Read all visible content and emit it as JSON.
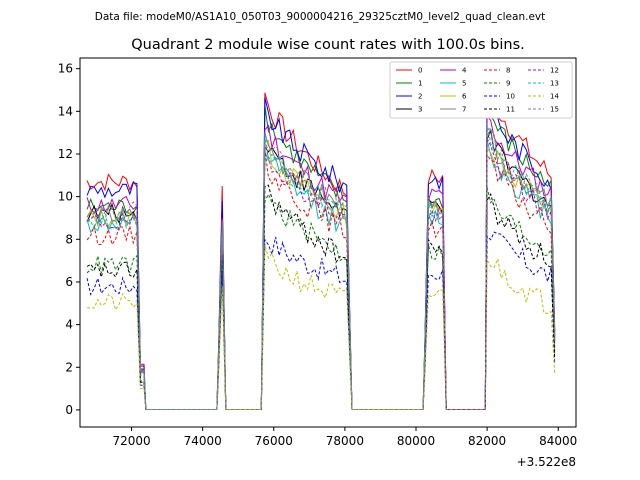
{
  "figure": {
    "suptitle": "Data file: modeM0/AS1A10_050T03_9000004216_29325cztM0_level2_quad_clean.evt",
    "title": "Quadrant 2 module wise count rates with 100.0s bins.",
    "x_offset_label": "+3.522e8"
  },
  "chart_data": {
    "type": "line",
    "title": "Quadrant 2 module wise count rates with 100.0s bins.",
    "xlabel": "",
    "ylabel": "",
    "x_offset": 352200000,
    "xlim": [
      70550,
      84500
    ],
    "ylim": [
      -0.8,
      16.5
    ],
    "xticks": [
      72000,
      74000,
      76000,
      78000,
      80000,
      82000,
      84000
    ],
    "xtick_labels": [
      "72000",
      "74000",
      "76000",
      "78000",
      "80000",
      "82000",
      "84000"
    ],
    "yticks": [
      0,
      2,
      4,
      6,
      8,
      10,
      12,
      14,
      16
    ],
    "ytick_labels": [
      "0",
      "2",
      "4",
      "6",
      "8",
      "10",
      "12",
      "14",
      "16"
    ],
    "grid": false,
    "legend_position": "top-right",
    "segments": [
      {
        "start": 70750,
        "end": 72400,
        "shape": "flat"
      },
      {
        "start": 72400,
        "end": 74450,
        "shape": "zero"
      },
      {
        "start": 74450,
        "end": 74650,
        "shape": "spike"
      },
      {
        "start": 74650,
        "end": 75750,
        "shape": "zero"
      },
      {
        "start": 75750,
        "end": 78200,
        "shape": "decay"
      },
      {
        "start": 78200,
        "end": 80250,
        "shape": "zero"
      },
      {
        "start": 80250,
        "end": 80850,
        "shape": "flat"
      },
      {
        "start": 80850,
        "end": 82000,
        "shape": "zero"
      },
      {
        "start": 82000,
        "end": 83950,
        "shape": "decay"
      }
    ],
    "series": [
      {
        "name": "0",
        "color": "#ff0000",
        "dash": false,
        "level1": 10.7,
        "peak2": 14.8,
        "tail2": 10.0,
        "level3": 10.9,
        "peak4": 15.4,
        "tail4": 10.7,
        "spike": 10.5
      },
      {
        "name": "1",
        "color": "#008000",
        "dash": false,
        "level1": 9.5,
        "peak2": 14.0,
        "tail2": 9.6,
        "level3": 9.8,
        "peak4": 14.3,
        "tail4": 10.2,
        "spike": 9.6
      },
      {
        "name": "2",
        "color": "#0000ff",
        "dash": false,
        "level1": 10.3,
        "peak2": 14.2,
        "tail2": 10.3,
        "level3": 10.8,
        "peak4": 14.6,
        "tail4": 10.5,
        "spike": 9.8
      },
      {
        "name": "3",
        "color": "#000000",
        "dash": false,
        "level1": 9.2,
        "peak2": 12.8,
        "tail2": 9.0,
        "level3": 9.6,
        "peak4": 13.0,
        "tail4": 9.4,
        "spike": 8.7
      },
      {
        "name": "4",
        "color": "#bf00bf",
        "dash": false,
        "level1": 9.6,
        "peak2": 13.4,
        "tail2": 9.5,
        "level3": 10.0,
        "peak4": 13.8,
        "tail4": 9.9,
        "spike": 9.0
      },
      {
        "name": "5",
        "color": "#00bfbf",
        "dash": false,
        "level1": 8.7,
        "peak2": 12.2,
        "tail2": 8.4,
        "level3": 9.0,
        "peak4": 12.4,
        "tail4": 8.9,
        "spike": 8.4
      },
      {
        "name": "6",
        "color": "#bfbf00",
        "dash": false,
        "level1": 9.0,
        "peak2": 12.5,
        "tail2": 8.9,
        "level3": 9.3,
        "peak4": 12.8,
        "tail4": 9.2,
        "spike": 8.6
      },
      {
        "name": "7",
        "color": "#808080",
        "dash": false,
        "level1": 9.1,
        "peak2": 12.7,
        "tail2": 9.2,
        "level3": 9.4,
        "peak4": 13.1,
        "tail4": 9.4,
        "spike": 8.8
      },
      {
        "name": "8",
        "color": "#ff0000",
        "dash": true,
        "level1": 8.2,
        "peak2": 11.7,
        "tail2": 8.2,
        "level3": 8.5,
        "peak4": 11.9,
        "tail4": 8.4,
        "spike": 8.1
      },
      {
        "name": "9",
        "color": "#008000",
        "dash": true,
        "level1": 6.8,
        "peak2": 10.2,
        "tail2": 7.1,
        "level3": 7.4,
        "peak4": 10.1,
        "tail4": 7.3,
        "spike": 7.0
      },
      {
        "name": "10",
        "color": "#0000ff",
        "dash": true,
        "level1": 5.8,
        "peak2": 8.2,
        "tail2": 6.0,
        "level3": 6.4,
        "peak4": 8.6,
        "tail4": 6.1,
        "spike": 6.5
      },
      {
        "name": "11",
        "color": "#000000",
        "dash": true,
        "level1": 6.5,
        "peak2": 10.5,
        "tail2": 6.9,
        "level3": 7.6,
        "peak4": 10.0,
        "tail4": 6.8,
        "spike": 7.3
      },
      {
        "name": "12",
        "color": "#bf00bf",
        "dash": true,
        "level1": 8.8,
        "peak2": 12.3,
        "tail2": 8.8,
        "level3": 9.0,
        "peak4": 12.6,
        "tail4": 9.0,
        "spike": 8.5
      },
      {
        "name": "13",
        "color": "#00bfbf",
        "dash": true,
        "level1": 8.9,
        "peak2": 12.6,
        "tail2": 9.1,
        "level3": 9.4,
        "peak4": 13.0,
        "tail4": 9.3,
        "spike": 8.7
      },
      {
        "name": "14",
        "color": "#bfbf00",
        "dash": true,
        "level1": 5.0,
        "peak2": 7.2,
        "tail2": 5.1,
        "level3": 5.4,
        "peak4": 7.4,
        "tail4": 4.7,
        "spike": 5.8
      },
      {
        "name": "15",
        "color": "#808080",
        "dash": true,
        "level1": 9.3,
        "peak2": 12.9,
        "tail2": 9.1,
        "level3": 9.5,
        "peak4": 13.2,
        "tail4": 9.3,
        "spike": 8.9
      }
    ]
  }
}
